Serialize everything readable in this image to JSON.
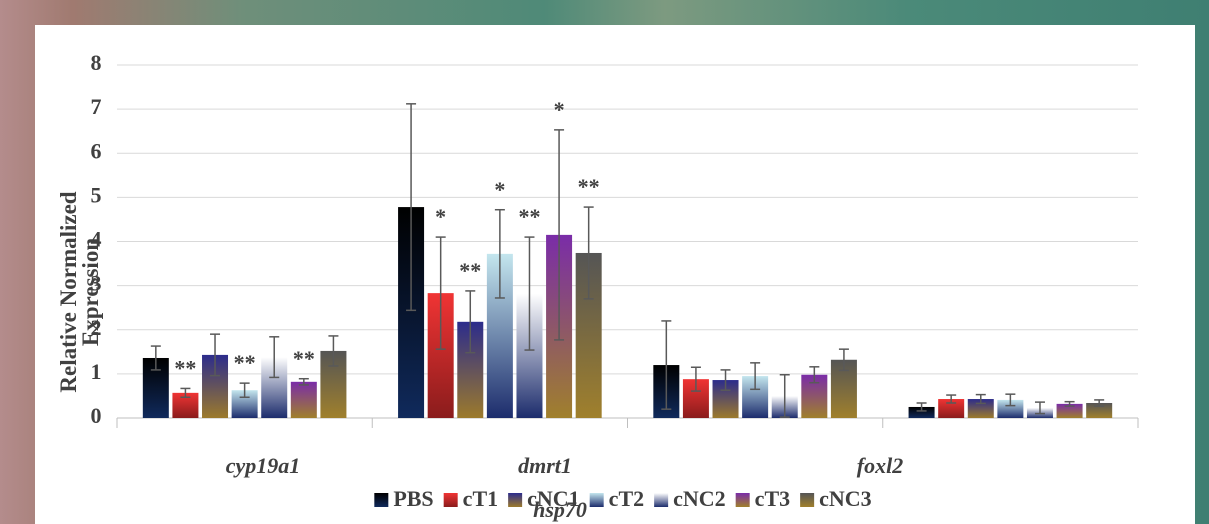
{
  "chart_data": {
    "type": "bar",
    "y_label": "Relative Normalized Expression",
    "categories": [
      "cyp19a1",
      "dmrt1",
      "foxl2",
      "hsp70"
    ],
    "ylim": [
      0,
      8
    ],
    "yticks": [
      0,
      1,
      2,
      3,
      4,
      5,
      6,
      7,
      8
    ],
    "grid": true,
    "series": [
      {
        "name": "PBS",
        "color": "#000000",
        "color_bottom": "#102a5c",
        "values": [
          1.36,
          4.78,
          1.2,
          0.25
        ],
        "errors": [
          0.27,
          2.34,
          1.0,
          0.09
        ],
        "significance": [
          null,
          null,
          null,
          null
        ]
      },
      {
        "name": "cT1",
        "color": "#f03434",
        "color_bottom": "#8a1c1c",
        "values": [
          0.57,
          2.83,
          0.88,
          0.43
        ],
        "errors": [
          0.1,
          1.27,
          0.27,
          0.09
        ],
        "significance": [
          "**",
          "*",
          null,
          null
        ]
      },
      {
        "name": "cNC1",
        "color": "#2c2c8c",
        "color_bottom": "#9c7a2c",
        "values": [
          1.43,
          2.18,
          0.86,
          0.43
        ],
        "errors": [
          0.47,
          0.7,
          0.23,
          0.1
        ],
        "significance": [
          null,
          "**",
          null,
          null
        ]
      },
      {
        "name": "cT2",
        "color": "#c4e6ee",
        "color_bottom": "#1c2c6c",
        "values": [
          0.63,
          3.72,
          0.95,
          0.41
        ],
        "errors": [
          0.16,
          1.0,
          0.3,
          0.13
        ],
        "significance": [
          "**",
          "*",
          null,
          null
        ]
      },
      {
        "name": "cNC2",
        "color": "#ffffff",
        "color_bottom": "#1c2c6c",
        "values": [
          1.38,
          2.82,
          0.5,
          0.23
        ],
        "errors": [
          0.46,
          1.28,
          0.48,
          0.13
        ],
        "significance": [
          null,
          "**",
          null,
          null
        ]
      },
      {
        "name": "cT3",
        "color": "#7a2ca8",
        "color_bottom": "#a0802c",
        "values": [
          0.82,
          4.15,
          0.98,
          0.32
        ],
        "errors": [
          0.07,
          2.38,
          0.18,
          0.05
        ],
        "significance": [
          "**",
          "*",
          null,
          null
        ]
      },
      {
        "name": "cNC3",
        "color": "#555555",
        "color_bottom": "#a0802c",
        "values": [
          1.52,
          3.74,
          1.32,
          0.34
        ],
        "errors": [
          0.34,
          1.04,
          0.24,
          0.07
        ],
        "significance": [
          null,
          "**",
          null,
          null
        ]
      }
    ]
  }
}
